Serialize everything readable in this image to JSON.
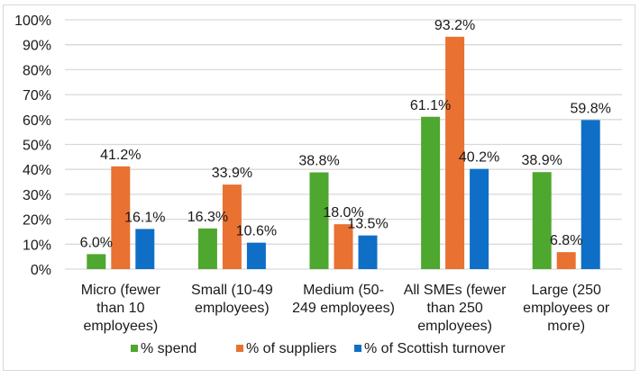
{
  "chart_data": {
    "type": "bar",
    "title": "",
    "xlabel": "",
    "ylabel": "",
    "ylim": [
      0,
      100
    ],
    "y_ticks": [
      "0%",
      "10%",
      "20%",
      "30%",
      "40%",
      "50%",
      "60%",
      "70%",
      "80%",
      "90%",
      "100%"
    ],
    "grid": true,
    "legend_position": "bottom",
    "categories": [
      [
        "Micro (fewer",
        "than 10",
        "employees)"
      ],
      [
        "Small (10-49",
        "employees)"
      ],
      [
        "Medium (50-",
        "249 employees)"
      ],
      [
        "All SMEs (fewer",
        "than 250",
        "employees)"
      ],
      [
        "Large (250",
        "employees or",
        "more)"
      ]
    ],
    "series": [
      {
        "name": "% spend",
        "color": "#4ea72e",
        "values": [
          6.0,
          16.3,
          38.8,
          61.1,
          38.9
        ],
        "labels": [
          "6.0%",
          "16.3%",
          "38.8%",
          "61.1%",
          "38.9%"
        ]
      },
      {
        "name": "% of suppliers",
        "color": "#e97132",
        "values": [
          41.2,
          33.9,
          18.0,
          93.2,
          6.8
        ],
        "labels": [
          "41.2%",
          "33.9%",
          "18.0%",
          "93.2%",
          "6.8%"
        ]
      },
      {
        "name": "% of Scottish turnover",
        "color": "#0f6fc6",
        "values": [
          16.1,
          10.6,
          13.5,
          40.2,
          59.8
        ],
        "labels": [
          "16.1%",
          "10.6%",
          "13.5%",
          "40.2%",
          "59.8%"
        ]
      }
    ]
  }
}
